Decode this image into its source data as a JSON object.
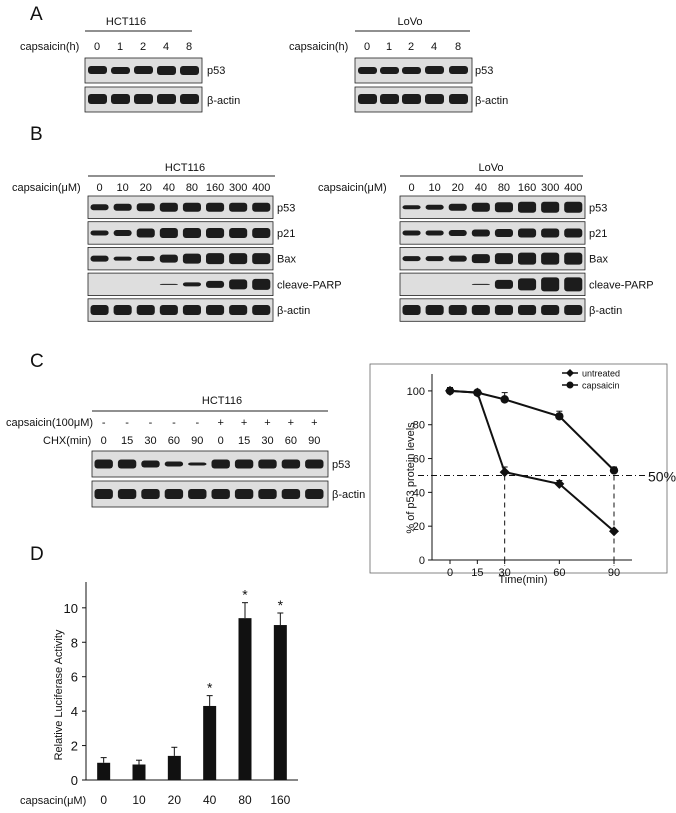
{
  "panel_A": {
    "label": "A",
    "blots": [
      {
        "cell_line": "HCT116",
        "row_label": "capsaicin(h)",
        "lanes": [
          "0",
          "1",
          "2",
          "4",
          "8"
        ],
        "proteins": [
          "p53",
          "β-actin"
        ]
      },
      {
        "cell_line": "LoVo",
        "row_label": "capsaicin(h)",
        "lanes": [
          "0",
          "1",
          "2",
          "4",
          "8"
        ],
        "proteins": [
          "p53",
          "β-actin"
        ]
      }
    ]
  },
  "panel_B": {
    "label": "B",
    "blots": [
      {
        "cell_line": "HCT116",
        "row_label": "capsaicin(μM)",
        "lanes": [
          "0",
          "10",
          "20",
          "40",
          "80",
          "160",
          "300",
          "400"
        ],
        "proteins": [
          "p53",
          "p21",
          "Bax",
          "cleave-PARP",
          "β-actin"
        ]
      },
      {
        "cell_line": "LoVo",
        "row_label": "capsaicin(μM)",
        "lanes": [
          "0",
          "10",
          "20",
          "40",
          "80",
          "160",
          "300",
          "400"
        ],
        "proteins": [
          "p53",
          "p21",
          "Bax",
          "cleave-PARP",
          "β-actin"
        ]
      }
    ]
  },
  "panel_C": {
    "label": "C",
    "blot": {
      "cell_line": "HCT116",
      "row1_label": "capsaicin(100μM)",
      "row1_marks": [
        "-",
        "-",
        "-",
        "-",
        "-",
        "+",
        "+",
        "+",
        "+",
        "+"
      ],
      "row2_label": "CHX(min)",
      "row2_values": [
        "0",
        "15",
        "30",
        "60",
        "90",
        "0",
        "15",
        "30",
        "60",
        "90"
      ],
      "proteins": [
        "p53",
        "β-actin"
      ]
    },
    "chart_data": {
      "type": "line",
      "x": [
        0,
        15,
        30,
        60,
        90
      ],
      "x_tick_labels": [
        "0",
        "15",
        "30",
        "60",
        "90"
      ],
      "ylabel": "% of p53 protein levels",
      "xlabel": "Time(min)",
      "ylim": [
        0,
        110
      ],
      "y_ticks": [
        "0",
        "20",
        "40",
        "60",
        "80",
        "100"
      ],
      "series": [
        {
          "name": "untreated",
          "marker": "diamond",
          "values": [
            100,
            99,
            52,
            45,
            17
          ],
          "errors": [
            2,
            1,
            3,
            2,
            1
          ]
        },
        {
          "name": "capsaicin",
          "marker": "circle",
          "values": [
            100,
            99,
            95,
            85,
            53
          ],
          "errors": [
            2,
            1,
            4,
            3,
            2
          ]
        }
      ],
      "reference_line": {
        "y": 50,
        "label": "50%"
      },
      "drop_lines_x": [
        30,
        90
      ],
      "legend_position": "top-right"
    }
  },
  "panel_D": {
    "label": "D",
    "chart_data": {
      "type": "bar",
      "categories": [
        "0",
        "10",
        "20",
        "40",
        "80",
        "160"
      ],
      "values": [
        1.0,
        0.9,
        1.4,
        4.3,
        9.4,
        9.0
      ],
      "errors": [
        0.3,
        0.25,
        0.5,
        0.6,
        0.9,
        0.7
      ],
      "significance": [
        "",
        "",
        "",
        "*",
        "*",
        "*"
      ],
      "ylabel": "Relative Luciferase Activity",
      "xlabel": "capsacin(μM)",
      "ylim": [
        0,
        11.5
      ],
      "y_ticks": [
        "0",
        "2",
        "4",
        "6",
        "8",
        "10"
      ]
    }
  }
}
